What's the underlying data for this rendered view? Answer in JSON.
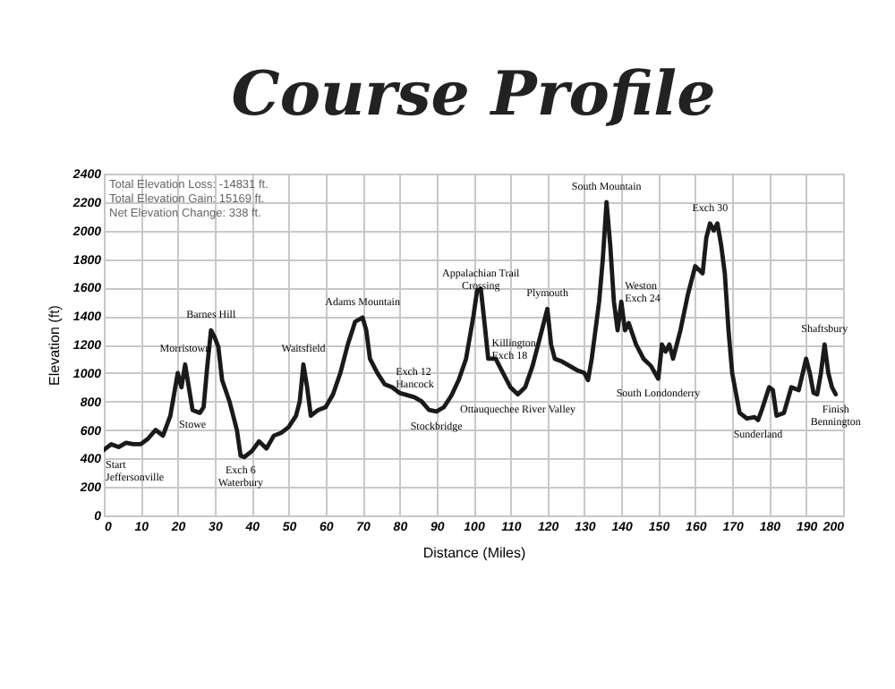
{
  "chart_data": {
    "type": "line",
    "title": "Course Profile",
    "xlabel": "Distance (Miles)",
    "ylabel": "Elevation (ft)",
    "x": [
      0,
      2,
      4,
      6,
      8,
      10,
      12,
      14,
      16,
      18,
      19,
      20,
      21,
      22,
      23,
      24,
      26,
      27,
      28,
      29,
      30,
      31,
      32,
      34,
      36,
      37,
      38,
      40,
      42,
      44,
      46,
      48,
      50,
      52,
      53,
      54,
      55,
      56,
      58,
      60,
      62,
      64,
      66,
      68,
      70,
      71,
      72,
      74,
      76,
      78,
      80,
      84,
      86,
      88,
      90,
      92,
      94,
      96,
      98,
      100,
      101,
      102,
      103,
      104,
      106,
      108,
      110,
      112,
      114,
      116,
      118,
      120,
      121,
      122,
      124,
      126,
      128,
      130,
      131,
      132,
      134,
      135,
      136,
      137,
      138,
      139,
      140,
      141,
      142,
      144,
      146,
      148,
      150,
      151,
      152,
      153,
      154,
      156,
      158,
      160,
      162,
      163,
      164,
      165,
      166,
      167,
      168,
      169,
      170,
      172,
      174,
      176,
      177,
      178,
      180,
      181,
      182,
      184,
      186,
      188,
      190,
      191,
      192,
      193,
      194,
      195,
      196,
      197,
      198
    ],
    "series": [
      {
        "color": "#1a1a1a",
        "values": [
          460,
          500,
          480,
          510,
          500,
          500,
          540,
          600,
          560,
          700,
          850,
          1000,
          900,
          1060,
          900,
          740,
          720,
          760,
          1050,
          1300,
          1250,
          1180,
          950,
          800,
          600,
          420,
          410,
          450,
          520,
          470,
          560,
          580,
          620,
          700,
          800,
          1060,
          900,
          700,
          740,
          760,
          850,
          1000,
          1200,
          1360,
          1390,
          1300,
          1100,
          1000,
          920,
          900,
          860,
          830,
          800,
          740,
          730,
          760,
          840,
          950,
          1100,
          1400,
          1580,
          1590,
          1350,
          1100,
          1100,
          1000,
          900,
          850,
          900,
          1050,
          1250,
          1450,
          1200,
          1100,
          1080,
          1050,
          1020,
          1000,
          950,
          1100,
          1500,
          1800,
          2200,
          1900,
          1500,
          1300,
          1500,
          1300,
          1350,
          1200,
          1100,
          1050,
          960,
          1200,
          1150,
          1200,
          1100,
          1300,
          1550,
          1750,
          1700,
          1950,
          2050,
          2000,
          2050,
          1900,
          1700,
          1300,
          1000,
          720,
          680,
          690,
          670,
          740,
          900,
          880,
          700,
          720,
          900,
          880,
          1100,
          1000,
          860,
          850,
          1000,
          1200,
          1000,
          900,
          850
        ]
      }
    ],
    "xlim": [
      0,
      200
    ],
    "xticks": [
      0,
      10,
      20,
      30,
      40,
      50,
      60,
      70,
      80,
      90,
      100,
      110,
      120,
      130,
      140,
      150,
      160,
      170,
      180,
      190,
      200
    ],
    "ylim": [
      0,
      2400
    ],
    "yticks": [
      0,
      200,
      400,
      600,
      800,
      1000,
      1200,
      1400,
      1600,
      1800,
      2000,
      2200,
      2400
    ],
    "grid": true,
    "annotations": [
      "Total Elevation Loss:  -14831 ft.",
      "Total Elevation Gain:  15169 ft.",
      "Net Elevation Change:  338 ft.",
      {
        "text": "Start\nJeffersonville",
        "x": 0,
        "y": 460
      },
      {
        "text": "Morristown",
        "x": 22,
        "y": 1060
      },
      {
        "text": "Stowe",
        "x": 24,
        "y": 740
      },
      {
        "text": "Barnes Hill",
        "x": 29,
        "y": 1300
      },
      {
        "text": "Exch 6\nWaterbury",
        "x": 37,
        "y": 420
      },
      {
        "text": "Waitsfield",
        "x": 54,
        "y": 1060
      },
      {
        "text": "Adams Mountain",
        "x": 70,
        "y": 1390
      },
      {
        "text": "Exch 12\nHancock",
        "x": 78,
        "y": 900
      },
      {
        "text": "Stockbridge",
        "x": 90,
        "y": 730
      },
      {
        "text": "Appalachian Trail\nCrossing",
        "x": 102,
        "y": 1590
      },
      {
        "text": "Killington\nExch 18",
        "x": 104,
        "y": 1100
      },
      {
        "text": "Ottauquechee River Valley",
        "x": 112,
        "y": 850
      },
      {
        "text": "Plymouth",
        "x": 120,
        "y": 1450
      },
      {
        "text": "South Mountain",
        "x": 136,
        "y": 2200
      },
      {
        "text": "Weston\nExch 24",
        "x": 140,
        "y": 1500
      },
      {
        "text": "South Londonderry",
        "x": 150,
        "y": 960
      },
      {
        "text": "Exch 30",
        "x": 164,
        "y": 2050
      },
      {
        "text": "Sunderland",
        "x": 177,
        "y": 670
      },
      {
        "text": "Shaftsbury",
        "x": 195,
        "y": 1200
      },
      {
        "text": "Finish\nBennington",
        "x": 198,
        "y": 850
      }
    ]
  }
}
